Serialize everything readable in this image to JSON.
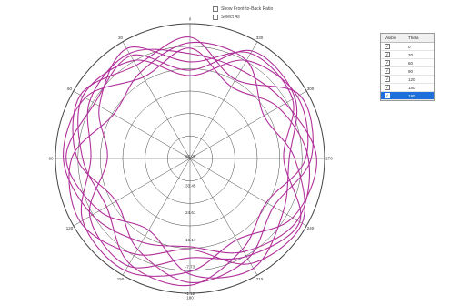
{
  "options": {
    "show_front_back": "Show Front-to-Back Ratio",
    "select_all": "Select All"
  },
  "table": {
    "headers": [
      "Visible",
      "Theta"
    ],
    "rows": [
      {
        "theta": "0",
        "visible": true,
        "selected": false
      },
      {
        "theta": "30",
        "visible": true,
        "selected": false
      },
      {
        "theta": "60",
        "visible": true,
        "selected": false
      },
      {
        "theta": "90",
        "visible": true,
        "selected": false
      },
      {
        "theta": "120",
        "visible": true,
        "selected": false
      },
      {
        "theta": "150",
        "visible": true,
        "selected": false
      },
      {
        "theta": "180",
        "visible": true,
        "selected": true
      }
    ]
  },
  "colors": {
    "trace": "#b0309a",
    "grid": "#444444",
    "selection": "#1e6fd9"
  },
  "chart_data": {
    "type": "line",
    "polar": true,
    "angle_labels": [
      "0",
      "30",
      "60",
      "90",
      "120",
      "150",
      "180",
      "210",
      "240",
      "270",
      "300",
      "330"
    ],
    "radial_labels": [
      "-50.09",
      "-33.45",
      "-24.61",
      "-16.17",
      "-7.73",
      "-1.12"
    ],
    "rlim": [
      -50.09,
      -1.12
    ],
    "grid": true,
    "series": [
      {
        "r": [
          -12,
          -6,
          -8,
          -14,
          -5,
          -3,
          -9,
          -16,
          -7,
          -4,
          -10,
          -13
        ]
      },
      {
        "r": [
          -20,
          -9,
          -5,
          -11,
          -15,
          -6,
          -4,
          -12,
          -18,
          -8,
          -5,
          -9
        ]
      },
      {
        "r": [
          -8,
          -14,
          -18,
          -7,
          -4,
          -10,
          -17,
          -6,
          -3,
          -12,
          -19,
          -9
        ]
      },
      {
        "r": [
          -15,
          -4,
          -12,
          -20,
          -8,
          -5,
          -14,
          -9,
          -4,
          -16,
          -7,
          -6
        ]
      },
      {
        "r": [
          -6,
          -11,
          -4,
          -9,
          -19,
          -12,
          -5,
          -8,
          -15,
          -6,
          -4,
          -17
        ]
      },
      {
        "r": [
          -18,
          -7,
          -10,
          -5,
          -12,
          -20,
          -8,
          -4,
          -11,
          -14,
          -6,
          -5
        ]
      },
      {
        "r": [
          -10,
          -16,
          -6,
          -4,
          -9,
          -15,
          -18,
          -11,
          -5,
          -7,
          -13,
          -20
        ]
      }
    ]
  }
}
